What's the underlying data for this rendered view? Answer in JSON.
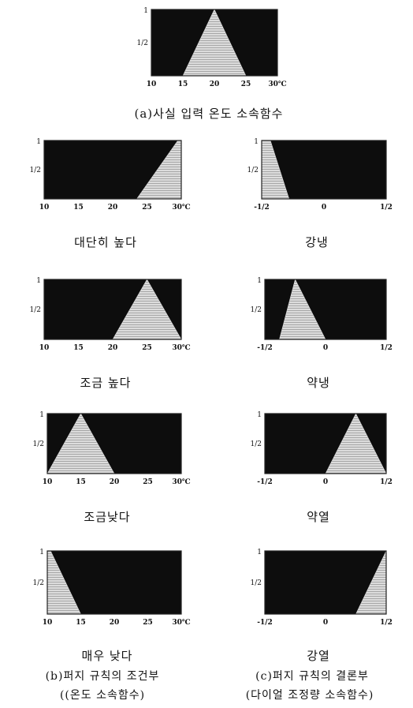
{
  "chart_data": [
    {
      "type": "area",
      "title": "",
      "yticks": [
        "1",
        "1/2"
      ],
      "xticks": [
        "10",
        "15",
        "20",
        "25",
        "30℃"
      ],
      "xlim": [
        10,
        30
      ],
      "ylim": [
        0,
        1
      ],
      "x": [
        10,
        15,
        20,
        25,
        30
      ],
      "values": [
        0,
        0,
        1,
        0,
        0
      ],
      "caption": "(a)사실 입력 온도 소속함수"
    },
    {
      "type": "area",
      "title": "",
      "yticks": [
        "1",
        "1/2"
      ],
      "xticks": [
        "10",
        "15",
        "20",
        "25",
        "30℃"
      ],
      "xlim": [
        10,
        30
      ],
      "ylim": [
        0,
        1
      ],
      "x": [
        10,
        23.5,
        29.5,
        30
      ],
      "values": [
        0,
        0,
        1,
        1
      ],
      "caption": "대단히 높다"
    },
    {
      "type": "area",
      "title": "",
      "yticks": [
        "1",
        "1/2"
      ],
      "xticks": [
        "-1/2",
        "0",
        "1/2"
      ],
      "xlim": [
        -0.5,
        0.5
      ],
      "ylim": [
        0,
        1
      ],
      "x": [
        -0.5,
        -0.43,
        -0.28,
        0.5
      ],
      "values": [
        1,
        1,
        0,
        0
      ],
      "caption": "강냉"
    },
    {
      "type": "area",
      "title": "",
      "yticks": [
        "1",
        "1/2"
      ],
      "xticks": [
        "10",
        "15",
        "20",
        "25",
        "30℃"
      ],
      "xlim": [
        10,
        30
      ],
      "ylim": [
        0,
        1
      ],
      "x": [
        10,
        20,
        25,
        30
      ],
      "values": [
        0,
        0,
        1,
        0
      ],
      "caption": "조금 높다"
    },
    {
      "type": "area",
      "title": "",
      "yticks": [
        "1",
        "1/2"
      ],
      "xticks": [
        "-1/2",
        "0",
        "1/2"
      ],
      "xlim": [
        -0.5,
        0.5
      ],
      "ylim": [
        0,
        1
      ],
      "x": [
        -0.5,
        -0.38,
        -0.25,
        0,
        0.5
      ],
      "values": [
        0,
        0,
        1,
        0,
        0
      ],
      "caption": "약냉"
    },
    {
      "type": "area",
      "title": "",
      "yticks": [
        "1",
        "1/2"
      ],
      "xticks": [
        "10",
        "15",
        "20",
        "25",
        "30℃"
      ],
      "xlim": [
        10,
        30
      ],
      "ylim": [
        0,
        1
      ],
      "x": [
        10,
        15,
        20,
        30
      ],
      "values": [
        0,
        1,
        0,
        0
      ],
      "caption": "조금낮다"
    },
    {
      "type": "area",
      "title": "",
      "yticks": [
        "1",
        "1/2"
      ],
      "xticks": [
        "-1/2",
        "0",
        "1/2"
      ],
      "xlim": [
        -0.5,
        0.5
      ],
      "ylim": [
        0,
        1
      ],
      "x": [
        -0.5,
        0,
        0.25,
        0.5
      ],
      "values": [
        0,
        0,
        1,
        0
      ],
      "caption": "약열"
    },
    {
      "type": "area",
      "title": "",
      "yticks": [
        "1",
        "1/2"
      ],
      "xticks": [
        "10",
        "15",
        "20",
        "25",
        "30℃"
      ],
      "xlim": [
        10,
        30
      ],
      "ylim": [
        0,
        1
      ],
      "x": [
        10,
        10.5,
        15,
        30
      ],
      "values": [
        1,
        1,
        0,
        0
      ],
      "caption": "매우 낮다"
    },
    {
      "type": "area",
      "title": "",
      "yticks": [
        "1",
        "1/2"
      ],
      "xticks": [
        "-1/2",
        "0",
        "1/2"
      ],
      "xlim": [
        -0.5,
        0.5
      ],
      "ylim": [
        0,
        1
      ],
      "x": [
        -0.5,
        0.25,
        0.5
      ],
      "values": [
        0,
        0,
        1
      ],
      "caption": "강열"
    }
  ],
  "footer": {
    "left_line1": "(b)퍼지 규칙의 조건부",
    "left_line2": "((온도 소속함수)",
    "right_line1": "(c)퍼지 규칙의 결론부",
    "right_line2": "(다이얼 조정량 소속함수)"
  },
  "colors": {
    "background": "#0d0d0d",
    "fill": "#dcdcdc",
    "frame": "#222222"
  }
}
